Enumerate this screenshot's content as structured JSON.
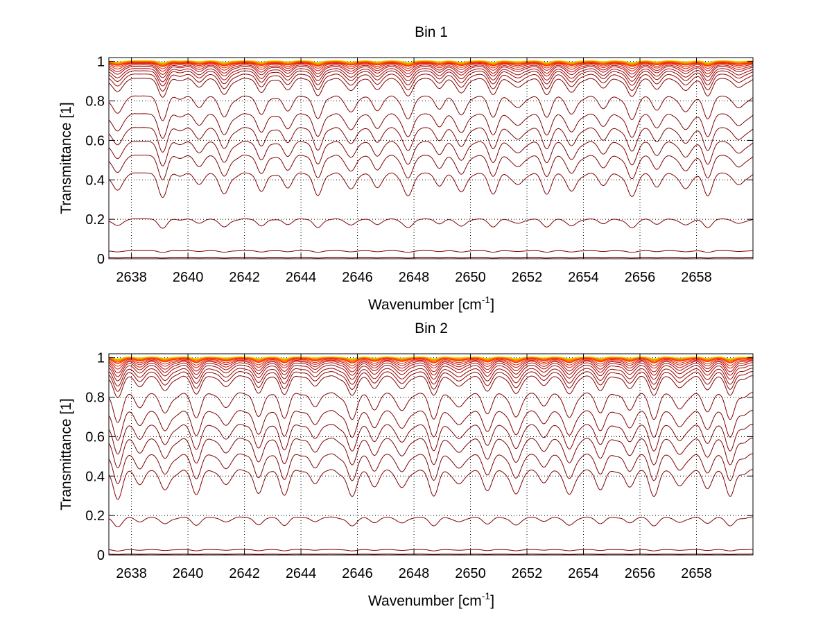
{
  "chart_data": [
    {
      "type": "line",
      "title": "Bin 1",
      "xlabel": "Wavenumber [cm",
      "xlabel_sup": "-1",
      "xlabel_end": "]",
      "ylabel": "Transmittance [1]",
      "xlim": [
        2637.2,
        2660
      ],
      "ylim": [
        0,
        1.02
      ],
      "grid": true,
      "xticks": [
        2638,
        2640,
        2642,
        2644,
        2646,
        2648,
        2650,
        2652,
        2654,
        2656,
        2658
      ],
      "yticks": [
        0,
        0.2,
        0.4,
        0.6,
        0.8,
        1
      ],
      "ytick_labels": [
        "0",
        "0.2",
        "0.4",
        "0.6",
        "0.8",
        "1"
      ],
      "strong_lines": [
        2637.5,
        2639.1,
        2640.4,
        2641.3,
        2642.6,
        2643.5,
        2644.6,
        2645.8,
        2646.7,
        2647.8,
        2648.9,
        2649.7,
        2650.8,
        2651.7,
        2652.7,
        2653.6,
        2654.7,
        2655.7,
        2656.6,
        2657.6,
        2658.4,
        2659.5
      ],
      "series": [
        {
          "mean": 1.0,
          "depth": 0.01,
          "color": "#ffd000"
        },
        {
          "mean": 0.997,
          "depth": 0.012,
          "color": "#a0d000"
        },
        {
          "mean": 0.995,
          "depth": 0.015,
          "color": "#ff9000"
        },
        {
          "mean": 0.992,
          "depth": 0.018,
          "color": "#ff6000"
        },
        {
          "mean": 0.988,
          "depth": 0.02,
          "color": "#ff3000"
        },
        {
          "mean": 0.982,
          "depth": 0.03,
          "color": "#e02000"
        },
        {
          "mean": 0.975,
          "depth": 0.04,
          "color": "#cc1000"
        },
        {
          "mean": 0.965,
          "depth": 0.05,
          "color": "#bb0000"
        },
        {
          "mean": 0.955,
          "depth": 0.06,
          "color": "#aa0000"
        },
        {
          "mean": 0.94,
          "depth": 0.07,
          "color": "#a00000"
        },
        {
          "mean": 0.925,
          "depth": 0.08,
          "color": "#960000"
        },
        {
          "mean": 0.905,
          "depth": 0.09,
          "color": "#8c0000"
        },
        {
          "mean": 0.88,
          "depth": 0.1,
          "color": "#820000"
        },
        {
          "mean": 0.78,
          "depth": 0.13,
          "color": "#800000"
        },
        {
          "mean": 0.69,
          "depth": 0.13,
          "color": "#800000"
        },
        {
          "mean": 0.62,
          "depth": 0.13,
          "color": "#800000"
        },
        {
          "mean": 0.55,
          "depth": 0.13,
          "color": "#800000"
        },
        {
          "mean": 0.48,
          "depth": 0.13,
          "color": "#800000"
        },
        {
          "mean": 0.39,
          "depth": 0.13,
          "color": "#800000"
        },
        {
          "mean": 0.185,
          "depth": 0.05,
          "color": "#800000"
        },
        {
          "mean": 0.038,
          "depth": 0.01,
          "color": "#800000"
        },
        {
          "mean": 0.005,
          "depth": 0.002,
          "color": "#800000"
        }
      ]
    },
    {
      "type": "line",
      "title": "Bin 2",
      "xlabel": "Wavenumber [cm",
      "xlabel_sup": "-1",
      "xlabel_end": "]",
      "ylabel": "Transmittance [1]",
      "xlim": [
        2637.2,
        2660
      ],
      "ylim": [
        0,
        1.02
      ],
      "grid": true,
      "xticks": [
        2638,
        2640,
        2642,
        2644,
        2646,
        2648,
        2650,
        2652,
        2654,
        2656,
        2658
      ],
      "yticks": [
        0,
        0.2,
        0.4,
        0.6,
        0.8,
        1
      ],
      "ytick_labels": [
        "0",
        "0.2",
        "0.4",
        "0.6",
        "0.8",
        "1"
      ],
      "strong_lines": [
        2637.5,
        2638.3,
        2639.2,
        2640.3,
        2641.3,
        2642.5,
        2643.4,
        2644.5,
        2645.8,
        2646.6,
        2647.6,
        2648.7,
        2649.6,
        2650.6,
        2651.6,
        2652.6,
        2653.5,
        2654.6,
        2655.6,
        2656.5,
        2657.4,
        2658.4,
        2659.2
      ],
      "series": [
        {
          "mean": 1.0,
          "depth": 0.01,
          "color": "#ffd000"
        },
        {
          "mean": 0.997,
          "depth": 0.012,
          "color": "#a0d000"
        },
        {
          "mean": 0.995,
          "depth": 0.015,
          "color": "#ff9000"
        },
        {
          "mean": 0.992,
          "depth": 0.02,
          "color": "#ff6000"
        },
        {
          "mean": 0.988,
          "depth": 0.025,
          "color": "#ff3000"
        },
        {
          "mean": 0.98,
          "depth": 0.035,
          "color": "#e02000"
        },
        {
          "mean": 0.972,
          "depth": 0.045,
          "color": "#cc1000"
        },
        {
          "mean": 0.962,
          "depth": 0.06,
          "color": "#bb0000"
        },
        {
          "mean": 0.95,
          "depth": 0.07,
          "color": "#aa0000"
        },
        {
          "mean": 0.935,
          "depth": 0.08,
          "color": "#a00000"
        },
        {
          "mean": 0.915,
          "depth": 0.09,
          "color": "#960000"
        },
        {
          "mean": 0.895,
          "depth": 0.1,
          "color": "#8c0000"
        },
        {
          "mean": 0.87,
          "depth": 0.11,
          "color": "#820000"
        },
        {
          "mean": 0.77,
          "depth": 0.15,
          "color": "#800000"
        },
        {
          "mean": 0.68,
          "depth": 0.15,
          "color": "#800000"
        },
        {
          "mean": 0.61,
          "depth": 0.15,
          "color": "#800000"
        },
        {
          "mean": 0.54,
          "depth": 0.15,
          "color": "#800000"
        },
        {
          "mean": 0.46,
          "depth": 0.15,
          "color": "#800000"
        },
        {
          "mean": 0.38,
          "depth": 0.15,
          "color": "#800000"
        },
        {
          "mean": 0.175,
          "depth": 0.05,
          "color": "#800000"
        },
        {
          "mean": 0.025,
          "depth": 0.008,
          "color": "#800000"
        },
        {
          "mean": 0.004,
          "depth": 0.002,
          "color": "#800000"
        }
      ]
    }
  ]
}
